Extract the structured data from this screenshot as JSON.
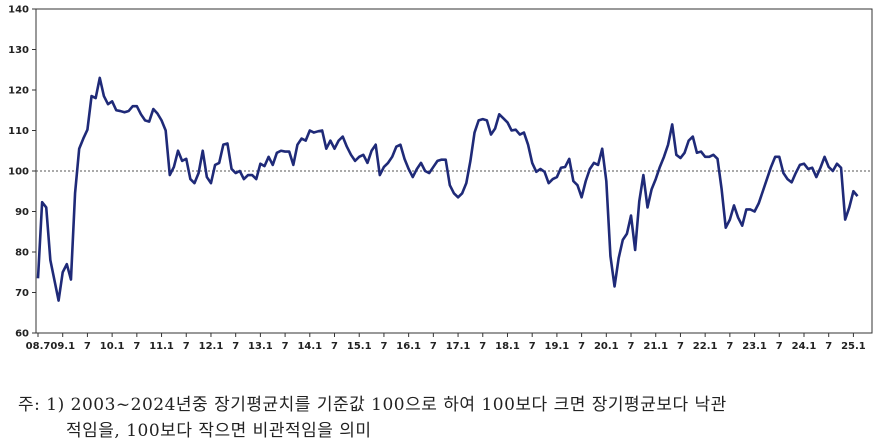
{
  "chart_data": {
    "type": "line",
    "ylim": [
      60,
      140
    ],
    "yticks": [
      60,
      70,
      80,
      90,
      100,
      110,
      120,
      130,
      140
    ],
    "reference_line": 100,
    "x_tick_labels": [
      "08.7",
      "09.1",
      "7",
      "10.1",
      "7",
      "11.1",
      "7",
      "12.1",
      "7",
      "13.1",
      "7",
      "14.1",
      "7",
      "15.1",
      "7",
      "16.1",
      "7",
      "17.1",
      "7",
      "18.1",
      "7",
      "19.1",
      "7",
      "20.1",
      "7",
      "21.1",
      "7",
      "22.1",
      "7",
      "23.1",
      "7",
      "24.1",
      "7",
      "25.1"
    ],
    "series": [
      {
        "color": "#1f2a78",
        "values": [
          73.5,
          92.3,
          91.0,
          78.0,
          73.0,
          68.0,
          75.0,
          77.0,
          73.2,
          94.5,
          105.5,
          108.0,
          110.2,
          118.5,
          118.0,
          123.0,
          118.5,
          116.5,
          117.2,
          115.0,
          114.8,
          114.5,
          114.8,
          116.0,
          116.0,
          114.0,
          112.5,
          112.2,
          115.3,
          114.2,
          112.5,
          110.0,
          99.0,
          101.0,
          105.0,
          102.5,
          103.0,
          98.0,
          97.0,
          99.5,
          105.0,
          98.5,
          97.0,
          101.5,
          102.0,
          106.5,
          106.8,
          100.5,
          99.5,
          100.0,
          98.0,
          99.0,
          99.0,
          98.0,
          101.8,
          101.2,
          103.5,
          101.5,
          104.5,
          105.0,
          104.8,
          104.8,
          101.5,
          106.5,
          108.0,
          107.5,
          110.0,
          109.5,
          109.8,
          110.0,
          105.5,
          107.5,
          105.5,
          107.5,
          108.5,
          106.0,
          104.0,
          102.5,
          103.5,
          104.0,
          102.0,
          105.0,
          106.5,
          99.0,
          101.0,
          102.0,
          103.5,
          106.0,
          106.5,
          103.0,
          100.5,
          98.5,
          100.5,
          102.0,
          100.0,
          99.5,
          101.0,
          102.5,
          102.8,
          102.8,
          96.5,
          94.5,
          93.5,
          94.5,
          97.0,
          102.5,
          109.5,
          112.5,
          112.8,
          112.5,
          109.0,
          110.5,
          114.0,
          113.0,
          112.0,
          110.0,
          110.2,
          109.0,
          109.5,
          106.5,
          102.0,
          99.8,
          100.5,
          99.8,
          97.0,
          98.0,
          98.5,
          100.8,
          101.0,
          103.0,
          97.5,
          96.5,
          93.5,
          97.5,
          100.5,
          102.0,
          101.5,
          105.5,
          97.5,
          79.0,
          71.5,
          78.5,
          83.0,
          84.5,
          89.0,
          80.5,
          92.5,
          99.0,
          91.0,
          95.5,
          98.0,
          101.0,
          103.5,
          106.5,
          111.5,
          104.0,
          103.2,
          104.5,
          107.5,
          108.5,
          104.5,
          104.8,
          103.5,
          103.5,
          104.0,
          103.0,
          95.5,
          86.0,
          88.0,
          91.5,
          88.5,
          86.5,
          90.5,
          90.5,
          90.0,
          92.0,
          95.0,
          98.0,
          101.0,
          103.5,
          103.5,
          99.5,
          98.0,
          97.2,
          99.5,
          101.5,
          101.8,
          100.5,
          100.8,
          98.5,
          100.8,
          103.5,
          101.0,
          100.0,
          101.8,
          100.8,
          88.0,
          91.0,
          95.0,
          93.8
        ]
      }
    ]
  },
  "note": {
    "line1": "주: 1) 2003~2024년중 장기평균치를 기준값 100으로 하여 100보다 크면 장기평균보다 낙관",
    "line2": "적임을, 100보다 작으면 비관적임을 의미"
  }
}
